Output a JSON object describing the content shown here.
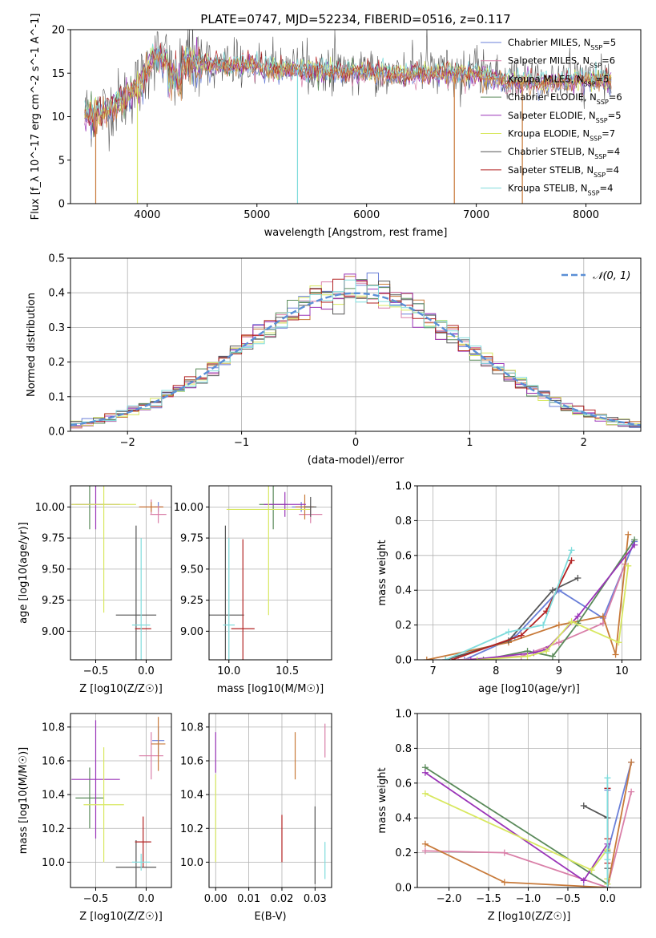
{
  "figure": {
    "title": "PLATE=0747, MJD=52234, FIBERID=0516, z=0.117"
  },
  "colors": {
    "chabrier_miles": "#6a7fd8",
    "salpeter_miles": "#d97fa8",
    "kroupa_miles": "#c87a3a",
    "chabrier_elodie": "#5a8a5a",
    "salpeter_elodie": "#9a34b8",
    "kroupa_elodie": "#d8e860",
    "chabrier_stelib": "#555555",
    "salpeter_stelib": "#b22222",
    "kroupa_stelib": "#7fdcdc",
    "normal": "#5b8fd6"
  },
  "chart_data": [
    {
      "id": "spectrum",
      "type": "line",
      "title": "PLATE=0747, MJD=52234, FIBERID=0516, z=0.117",
      "xlabel": "wavelength [Angstrom, rest frame]",
      "ylabel": "Flux [f_λ 10^-17 erg cm^-2 s^-1 A^-1]",
      "xlim": [
        3300,
        8500
      ],
      "ylim": [
        0,
        20
      ],
      "xticks": [
        4000,
        5000,
        6000,
        7000,
        8000
      ],
      "yticks": [
        0,
        5,
        10,
        15,
        20
      ],
      "grid": false,
      "legend_position": "top-right",
      "continuum": {
        "x": [
          3430,
          3600,
          3800,
          3950,
          4050,
          4200,
          4400,
          4600,
          4900,
          5200,
          5500,
          5800,
          6100,
          6400,
          6700,
          7000,
          7300,
          7600,
          7900,
          8200
        ],
        "y": [
          10.2,
          10.5,
          12.0,
          14.0,
          16.8,
          16.5,
          16.3,
          16.0,
          15.9,
          15.5,
          15.3,
          15.2,
          15.0,
          14.8,
          15.0,
          14.9,
          14.0,
          13.9,
          14.2,
          14.0
        ]
      },
      "series": [
        {
          "name": "Chabrier MILES, N_SSP=5",
          "color_key": "chabrier_miles"
        },
        {
          "name": "Salpeter MILES, N_SSP=6",
          "color_key": "salpeter_miles"
        },
        {
          "name": "Kroupa MILES, N_SSP=5",
          "color_key": "kroupa_miles"
        },
        {
          "name": "Chabrier ELODIE, N_SSP=6",
          "color_key": "chabrier_elodie"
        },
        {
          "name": "Salpeter ELODIE, N_SSP=5",
          "color_key": "salpeter_elodie"
        },
        {
          "name": "Kroupa ELODIE, N_SSP=7",
          "color_key": "kroupa_elodie"
        },
        {
          "name": "Chabrier STELIB, N_SSP=4",
          "color_key": "chabrier_stelib"
        },
        {
          "name": "Salpeter STELIB, N_SSP=4",
          "color_key": "salpeter_stelib"
        },
        {
          "name": "Kroupa STELIB, N_SSP=4",
          "color_key": "kroupa_stelib"
        }
      ],
      "drops": [
        {
          "x": 3530,
          "color_key": "kroupa_miles"
        },
        {
          "x": 3910,
          "color_key": "kroupa_elodie"
        },
        {
          "x": 5370,
          "color_key": "kroupa_stelib"
        },
        {
          "x": 6800,
          "color_key": "kroupa_miles"
        },
        {
          "x": 7420,
          "color_key": "kroupa_miles"
        }
      ]
    },
    {
      "id": "residuals",
      "type": "histogram",
      "xlabel": "(data-model)/error",
      "ylabel": "Normed distribution",
      "xlim": [
        -2.5,
        2.5
      ],
      "ylim": [
        0,
        0.5
      ],
      "xticks": [
        -2,
        -1,
        0,
        1,
        2
      ],
      "yticks": [
        0.0,
        0.1,
        0.2,
        0.3,
        0.4,
        0.5
      ],
      "grid": true,
      "legend_position": "top-right",
      "legend": "𝒩(0, 1)",
      "bin_width": 0.1
    },
    {
      "id": "age_vs_Z",
      "type": "errorbar",
      "xlabel": "Z [log10(Z/Z☉)]",
      "ylabel": "age [log10(age/yr)]",
      "xlim": [
        -0.75,
        0.25
      ],
      "ylim": [
        8.77,
        10.17
      ],
      "xticks": [
        -0.5,
        0.0
      ],
      "yticks": [
        9.0,
        9.25,
        9.5,
        9.75,
        10.0
      ],
      "grid": true,
      "points": [
        {
          "c": "chabrier_miles",
          "x": 0.12,
          "xe": 0.04,
          "y": 10.0,
          "ye": 0.04
        },
        {
          "c": "salpeter_miles",
          "x": 0.05,
          "xe": 0.12,
          "y": 10.0,
          "ye": 0.06
        },
        {
          "c": "kroupa_miles",
          "x": 0.05,
          "xe": 0.12,
          "y": 10.0,
          "ye": 0.04
        },
        {
          "c": "chabrier_elodie",
          "x": -0.56,
          "xe": 0.14,
          "y": 10.02,
          "ye": 0.2
        },
        {
          "c": "salpeter_elodie",
          "x": -0.5,
          "xe": 0.24,
          "y": 10.02,
          "ye": 0.2
        },
        {
          "c": "kroupa_elodie",
          "x": -0.42,
          "xe": 0.32,
          "y": 10.02,
          "ye": 0.87
        },
        {
          "c": "chabrier_stelib",
          "x": -0.1,
          "xe": 0.2,
          "y": 9.13,
          "ye": 0.72
        },
        {
          "c": "salpeter_stelib",
          "x": -0.03,
          "xe": 0.08,
          "y": 9.02,
          "ye": 0.0
        },
        {
          "c": "kroupa_stelib",
          "x": -0.05,
          "xe": 0.09,
          "y": 9.05,
          "ye": 0.7
        },
        {
          "c": "salpeter_miles",
          "x": 0.12,
          "xe": 0.08,
          "y": 9.94,
          "ye": 0.07
        }
      ]
    },
    {
      "id": "age_vs_mass",
      "type": "errorbar",
      "xlabel": "mass [log10(M/M☉)]",
      "ylabel": "",
      "xlim": [
        9.83,
        10.88
      ],
      "ylim": [
        8.77,
        10.17
      ],
      "xticks": [
        10.0,
        10.5
      ],
      "yticks": [
        9.0,
        9.25,
        9.5,
        9.75,
        10.0
      ],
      "grid": true,
      "points": [
        {
          "c": "chabrier_miles",
          "x": 10.62,
          "xe": 0.08,
          "y": 10.0,
          "ye": 0.04
        },
        {
          "c": "salpeter_miles",
          "x": 10.7,
          "xe": 0.1,
          "y": 9.94,
          "ye": 0.07
        },
        {
          "c": "kroupa_miles",
          "x": 10.65,
          "xe": 0.08,
          "y": 10.0,
          "ye": 0.1
        },
        {
          "c": "chabrier_elodie",
          "x": 10.38,
          "xe": 0.12,
          "y": 10.02,
          "ye": 0.2
        },
        {
          "c": "salpeter_elodie",
          "x": 10.48,
          "xe": 0.18,
          "y": 10.02,
          "ye": 0.1
        },
        {
          "c": "kroupa_elodie",
          "x": 10.34,
          "xe": 0.36,
          "y": 9.98,
          "ye": 0.85
        },
        {
          "c": "chabrier_stelib",
          "x": 9.97,
          "xe": 0.16,
          "y": 9.13,
          "ye": 0.72
        },
        {
          "c": "salpeter_stelib",
          "x": 10.12,
          "xe": 0.1,
          "y": 9.02,
          "ye": 0.72
        },
        {
          "c": "kroupa_stelib",
          "x": 10.0,
          "xe": 0.05,
          "y": 9.05,
          "ye": 0.7
        },
        {
          "c": "chabrier_stelib",
          "x": 10.7,
          "xe": 0.05,
          "y": 10.0,
          "ye": 0.08
        }
      ]
    },
    {
      "id": "weight_vs_age",
      "type": "line",
      "xlabel": "age [log10(age/yr)]",
      "ylabel": "mass weight",
      "xlim": [
        6.75,
        10.3
      ],
      "ylim": [
        0,
        1
      ],
      "xticks": [
        7,
        8,
        9,
        10
      ],
      "yticks": [
        0.0,
        0.2,
        0.4,
        0.6,
        0.8,
        1.0
      ],
      "grid": true,
      "series": [
        {
          "c": "chabrier_miles",
          "x": [
            7.5,
            8.3,
            9.0,
            9.7,
            10.2
          ],
          "y": [
            0.0,
            0.13,
            0.4,
            0.24,
            0.68
          ]
        },
        {
          "c": "salpeter_miles",
          "x": [
            7.4,
            8.4,
            9.0,
            9.7,
            10.05
          ],
          "y": [
            0.0,
            0.02,
            0.1,
            0.21,
            0.55
          ]
        },
        {
          "c": "kroupa_miles",
          "x": [
            6.9,
            8.2,
            9.0,
            9.7,
            9.9,
            10.1
          ],
          "y": [
            0.0,
            0.1,
            0.2,
            0.25,
            0.03,
            0.72
          ]
        },
        {
          "c": "chabrier_elodie",
          "x": [
            7.8,
            8.5,
            8.9,
            9.3,
            10.2
          ],
          "y": [
            0.0,
            0.05,
            0.02,
            0.21,
            0.69
          ]
        },
        {
          "c": "salpeter_elodie",
          "x": [
            7.6,
            8.6,
            8.8,
            9.3,
            10.2
          ],
          "y": [
            0.0,
            0.04,
            0.06,
            0.25,
            0.66
          ]
        },
        {
          "c": "kroupa_elodie",
          "x": [
            7.7,
            8.5,
            8.8,
            9.2,
            9.95,
            10.1
          ],
          "y": [
            0.0,
            0.02,
            0.05,
            0.22,
            0.1,
            0.54
          ]
        },
        {
          "c": "chabrier_stelib",
          "x": [
            7.2,
            8.2,
            8.9,
            9.3
          ],
          "y": [
            0.0,
            0.11,
            0.4,
            0.47
          ]
        },
        {
          "c": "salpeter_stelib",
          "x": [
            7.3,
            8.4,
            8.8,
            9.2
          ],
          "y": [
            0.0,
            0.14,
            0.28,
            0.57
          ]
        },
        {
          "c": "kroupa_stelib",
          "x": [
            7.2,
            8.2,
            8.75,
            9.2
          ],
          "y": [
            0.0,
            0.16,
            0.2,
            0.63
          ]
        }
      ]
    },
    {
      "id": "mass_vs_Z",
      "type": "errorbar",
      "xlabel": "Z [log10(Z/Z☉)]",
      "ylabel": "mass [log10(M/M☉)]",
      "xlim": [
        -0.75,
        0.25
      ],
      "ylim": [
        9.85,
        10.88
      ],
      "xticks": [
        -0.5,
        0.0
      ],
      "yticks": [
        10.0,
        10.2,
        10.4,
        10.6,
        10.8
      ],
      "grid": true,
      "points": [
        {
          "c": "chabrier_miles",
          "x": 0.12,
          "xe": 0.06,
          "y": 10.72,
          "ye": 0.08
        },
        {
          "c": "salpeter_miles",
          "x": 0.05,
          "xe": 0.12,
          "y": 10.63,
          "ye": 0.14
        },
        {
          "c": "kroupa_miles",
          "x": 0.12,
          "xe": 0.07,
          "y": 10.7,
          "ye": 0.16
        },
        {
          "c": "chabrier_elodie",
          "x": -0.56,
          "xe": 0.14,
          "y": 10.38,
          "ye": 0.18
        },
        {
          "c": "salpeter_elodie",
          "x": -0.5,
          "xe": 0.24,
          "y": 10.49,
          "ye": 0.35
        },
        {
          "c": "kroupa_elodie",
          "x": -0.42,
          "xe": 0.2,
          "y": 10.34,
          "ye": 0.34
        },
        {
          "c": "chabrier_stelib",
          "x": -0.1,
          "xe": 0.2,
          "y": 9.97,
          "ye": 0.16
        },
        {
          "c": "salpeter_stelib",
          "x": -0.03,
          "xe": 0.08,
          "y": 10.12,
          "ye": 0.15
        },
        {
          "c": "kroupa_stelib",
          "x": -0.05,
          "xe": 0.09,
          "y": 10.0,
          "ye": 0.05
        }
      ]
    },
    {
      "id": "mass_vs_ebv",
      "type": "errorbar",
      "xlabel": "E(B-V)",
      "ylabel": "",
      "xlim": [
        -0.002,
        0.035
      ],
      "ylim": [
        9.85,
        10.88
      ],
      "xticks": [
        0.0,
        0.01,
        0.02,
        0.03
      ],
      "yticks": [
        10.0,
        10.2,
        10.4,
        10.6,
        10.8
      ],
      "grid": true,
      "points": [
        {
          "c": "chabrier_miles",
          "x": 0.0,
          "xe": 0,
          "y": 10.0,
          "ye": 0.0
        },
        {
          "c": "salpeter_miles",
          "x": 0.033,
          "xe": 0,
          "y": 10.72,
          "ye": 0.1
        },
        {
          "c": "kroupa_miles",
          "x": 0.024,
          "xe": 0,
          "y": 10.63,
          "ye": 0.14
        },
        {
          "c": "salpeter_elodie",
          "x": 0.0,
          "xe": 0,
          "y": 10.65,
          "ye": 0.12
        },
        {
          "c": "kroupa_elodie",
          "x": 0.0,
          "xe": 0,
          "y": 10.26,
          "ye": 0.26
        },
        {
          "c": "chabrier_stelib",
          "x": 0.03,
          "xe": 0,
          "y": 10.1,
          "ye": 0.23
        },
        {
          "c": "salpeter_stelib",
          "x": 0.02,
          "xe": 0,
          "y": 10.14,
          "ye": 0.14
        },
        {
          "c": "kroupa_stelib",
          "x": 0.033,
          "xe": 0,
          "y": 10.01,
          "ye": 0.11
        }
      ]
    },
    {
      "id": "weight_vs_Z",
      "type": "line",
      "xlabel": "Z [log10(Z/Z☉)]",
      "ylabel": "mass weight",
      "xlim": [
        -2.4,
        0.42
      ],
      "ylim": [
        0,
        1
      ],
      "xticks": [
        -2.0,
        -1.5,
        -1.0,
        -0.5,
        0.0
      ],
      "yticks": [
        0.0,
        0.2,
        0.4,
        0.6,
        0.8,
        1.0
      ],
      "grid": true,
      "series": [
        {
          "c": "chabrier_miles",
          "x": [
            -0.3,
            0.0,
            0.0,
            0.0,
            0.3
          ],
          "y": [
            0.0,
            0.0,
            0.56,
            0.2,
            0.72
          ]
        },
        {
          "c": "salpeter_miles",
          "x": [
            -2.3,
            -1.3,
            0.0,
            0.0,
            0.0,
            0.3
          ],
          "y": [
            0.21,
            0.2,
            0.0,
            0.2,
            0.0,
            0.55
          ]
        },
        {
          "c": "kroupa_miles",
          "x": [
            -2.3,
            -1.3,
            0.0,
            0.0,
            0.3
          ],
          "y": [
            0.25,
            0.03,
            0.0,
            0.0,
            0.72
          ]
        },
        {
          "c": "chabrier_elodie",
          "x": [
            -2.3,
            0.0,
            0.0,
            0.0
          ],
          "y": [
            0.69,
            0.02,
            0.21,
            0.05
          ]
        },
        {
          "c": "salpeter_elodie",
          "x": [
            -2.3,
            -0.3,
            0.0,
            0.0
          ],
          "y": [
            0.66,
            0.04,
            0.25,
            0.0
          ]
        },
        {
          "c": "kroupa_elodie",
          "x": [
            -2.3,
            -0.2,
            0.0,
            0.0,
            0.0
          ],
          "y": [
            0.54,
            0.1,
            0.22,
            0.05,
            0.02
          ]
        },
        {
          "c": "chabrier_stelib",
          "x": [
            -0.3,
            0.0,
            0.0,
            0.0
          ],
          "y": [
            0.47,
            0.4,
            0.11,
            0.0
          ]
        },
        {
          "c": "salpeter_stelib",
          "x": [
            0.0,
            0.0,
            0.0
          ],
          "y": [
            0.57,
            0.28,
            0.14
          ]
        },
        {
          "c": "kroupa_stelib",
          "x": [
            0.0,
            0.0,
            0.0,
            0.0
          ],
          "y": [
            0.63,
            0.2,
            0.16,
            0.0
          ]
        }
      ]
    }
  ]
}
